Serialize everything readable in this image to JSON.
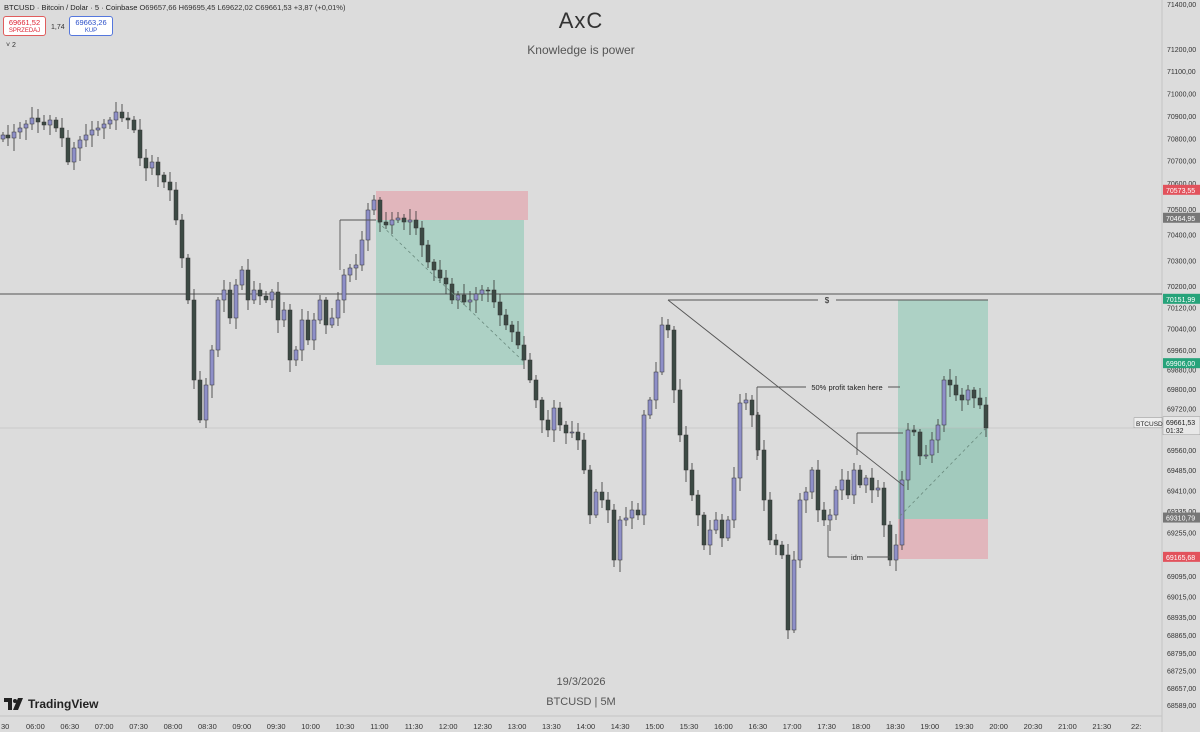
{
  "header": {
    "symbol_line": "BTCUSD · Bitcoin / Dolar · 5 · Coinbase",
    "ohlc": "O69657,66  H69695,45  L69622,02  C69661,53  +3,87 (+0,01%)",
    "sell_price": "69661,52",
    "sell_label": "SPRZEDAJ",
    "spread": "1,74",
    "buy_price": "69663,26",
    "buy_label": "KUP",
    "indicators_toggle": "˅ 2"
  },
  "watermark": {
    "title": "AxC",
    "subtitle": "Knowledge is power",
    "date": "19/3/2026",
    "symbol": "BTCUSD | 5M",
    "logo_text": "TradingView"
  },
  "price_axis": {
    "ticks": [
      "71400,00",
      "71200,00",
      "71100,00",
      "71000,00",
      "70900,00",
      "70800,00",
      "70700,00",
      "70600,00",
      "70500,00",
      "70400,00",
      "70300,00",
      "70200,00",
      "70120,00",
      "70040,00",
      "69960,00",
      "69880,00",
      "69800,00",
      "69720,00",
      "69640,00",
      "69560,00",
      "69485,00",
      "69410,00",
      "69335,00",
      "69255,00",
      "69175,00",
      "69095,00",
      "69015,00",
      "68935,00",
      "68865,00",
      "68795,00",
      "68725,00",
      "68657,00",
      "68589,00"
    ],
    "badges": [
      {
        "text": "70573,55",
        "color": "#e2525c",
        "price": 70573.55
      },
      {
        "text": "70464,95",
        "color": "#777777",
        "price": 70464.95
      },
      {
        "text": "70151,99",
        "color": "#26a37a",
        "price": 70151.99
      },
      {
        "text": "69906,00",
        "color": "#26a37a",
        "price": 69906.0
      },
      {
        "text": "69310,79",
        "color": "#777777",
        "price": 69310.79
      },
      {
        "text": "69165,68",
        "color": "#e2525c",
        "price": 69165.68
      }
    ],
    "current": {
      "symbol": "BTCUSD",
      "price_text": "69661,53",
      "countdown": "01:32",
      "price": 69661.53
    }
  },
  "time_axis": {
    "labels": [
      "30",
      "06:00",
      "06:30",
      "07:00",
      "07:30",
      "08:00",
      "08:30",
      "09:00",
      "09:30",
      "10:00",
      "10:30",
      "11:00",
      "11:30",
      "12:00",
      "12:30",
      "13:00",
      "13:30",
      "14:00",
      "14:30",
      "15:00",
      "15:30",
      "16:00",
      "16:30",
      "17:00",
      "17:30",
      "18:00",
      "18:30",
      "19:00",
      "19:30",
      "20:00",
      "20:30",
      "21:00",
      "21:30",
      "22:"
    ]
  },
  "annotations": {
    "dollar": "$",
    "profit_note": "50% profit taken here",
    "idm": "idm"
  },
  "colors": {
    "background": "#dcdcdc",
    "up_candle": "#8e8fc8",
    "down_candle": "#3c4a44",
    "target_zone": "#9ecdbd",
    "stop_zone": "#e3aab1"
  },
  "chart_data": {
    "type": "candlestick",
    "title": "",
    "ylim": [
      68589,
      71400
    ],
    "x": [
      "05:30",
      "06:00",
      "06:30",
      "07:00",
      "07:30",
      "08:00",
      "08:30",
      "09:00",
      "09:30",
      "10:00",
      "10:30",
      "11:00",
      "11:30",
      "12:00",
      "12:30",
      "13:00",
      "13:30",
      "14:00",
      "14:30",
      "15:00",
      "15:30",
      "16:00",
      "16:30",
      "17:00",
      "17:30",
      "18:00",
      "18:30",
      "19:00",
      "19:30"
    ],
    "close": [
      70830,
      70890,
      70870,
      70900,
      70760,
      70650,
      69600,
      70200,
      70110,
      70020,
      70300,
      70470,
      70430,
      70200,
      70100,
      69900,
      69660,
      69300,
      69250,
      69980,
      69510,
      69800,
      69000,
      69350,
      69400,
      69450,
      69700,
      69780,
      69661.53
    ]
  }
}
